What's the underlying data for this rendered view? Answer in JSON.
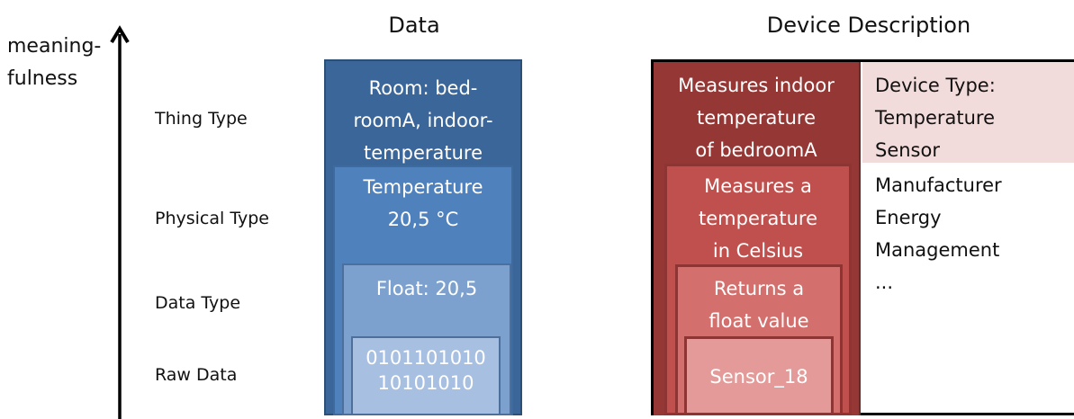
{
  "headings": {
    "data": "Data",
    "device_description": "Device Description"
  },
  "axis": {
    "label_line1": "meaning-",
    "label_line2": "fulness"
  },
  "levels": {
    "thing_type": "Thing Type",
    "physical_type": "Physical Type",
    "data_type": "Data Type",
    "raw_data": "Raw Data"
  },
  "data_column": {
    "thing": [
      "Room: bed-",
      "roomA, indoor-",
      "temperature"
    ],
    "physical": [
      "Temperature",
      "20,5 °C"
    ],
    "datatype": [
      "Float: 20,5"
    ],
    "raw": [
      "0101101010",
      "10101010"
    ]
  },
  "device_column": {
    "thing": [
      "Measures indoor",
      "temperature",
      "of bedroomA"
    ],
    "physical": [
      "Measures a",
      "temperature",
      "in Celsius"
    ],
    "datatype": [
      "Returns a",
      "float value"
    ],
    "raw": [
      "Sensor_18"
    ]
  },
  "device_info": {
    "type": [
      "Device Type:",
      "Temperature",
      "Sensor"
    ],
    "meta": [
      "Manufacturer",
      "Energy",
      "Management",
      "..."
    ]
  },
  "colors": {
    "blue_1": "#3a6699",
    "blue_2": "#4f81bd",
    "blue_3": "#7da1cf",
    "blue_4": "#a7bfe0",
    "red_1": "#953735",
    "red_2": "#c0504d",
    "red_3": "#d3706d",
    "red_4": "#e39a98",
    "pink": "#f2dcdb"
  }
}
